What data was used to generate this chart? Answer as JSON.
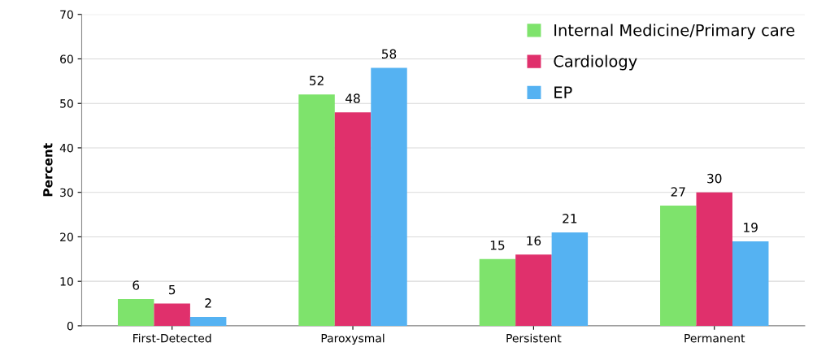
{
  "chart_data": {
    "type": "bar",
    "ylabel": "Percent",
    "categories": [
      "First-Detected",
      "Paroxysmal",
      "Persistent",
      "Permanent"
    ],
    "series": [
      {
        "name": "Internal Medicine/Primary care",
        "color": "#7ee36c",
        "values": [
          6,
          52,
          15,
          27
        ]
      },
      {
        "name": "Cardiology",
        "color": "#e0306c",
        "values": [
          5,
          48,
          16,
          30
        ]
      },
      {
        "name": "EP",
        "color": "#55b2f2",
        "values": [
          2,
          58,
          21,
          19
        ]
      }
    ],
    "ylim": [
      0,
      70
    ],
    "yticks": [
      0,
      10,
      20,
      30,
      40,
      50,
      60,
      70
    ],
    "grid": "y",
    "legend": "top right",
    "data_labels": true
  }
}
